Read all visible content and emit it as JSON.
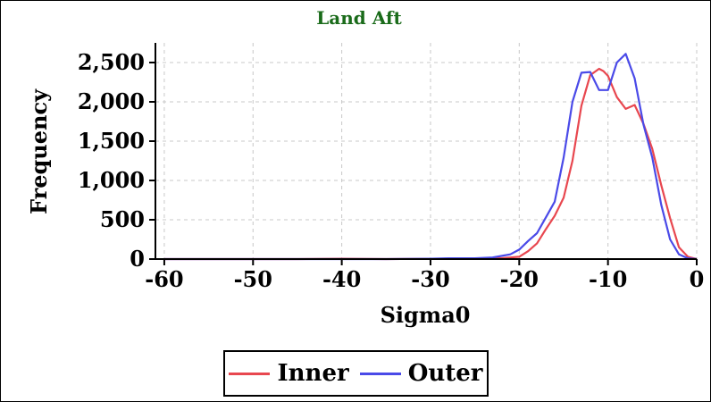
{
  "chart_data": {
    "type": "line",
    "title": "Land Aft",
    "xlabel": "Sigma0",
    "ylabel": "Frequency",
    "xlim": [
      -61,
      0
    ],
    "ylim": [
      0,
      2750
    ],
    "xticks": [
      "-60",
      "-50",
      "-40",
      "-30",
      "-20",
      "-10",
      "0"
    ],
    "yticks": [
      "0",
      "500",
      "1,000",
      "1,500",
      "2,000",
      "2,500"
    ],
    "grid": true,
    "legend_position": "bottom",
    "series": [
      {
        "name": "Inner",
        "color": "#e8474f",
        "x": [
          -60,
          -55,
          -50,
          -45,
          -40,
          -35,
          -30,
          -25,
          -23,
          -22,
          -21,
          -20,
          -19,
          -18,
          -17,
          -16,
          -15,
          -14,
          -13,
          -12,
          -11,
          -10.5,
          -10,
          -9,
          -8,
          -7,
          -6,
          -5,
          -4,
          -3,
          -2,
          -1,
          0
        ],
        "y": [
          0,
          0,
          0,
          0,
          5,
          0,
          5,
          5,
          10,
          10,
          20,
          30,
          100,
          200,
          380,
          550,
          780,
          1250,
          1950,
          2340,
          2420,
          2390,
          2330,
          2060,
          1910,
          1960,
          1720,
          1400,
          940,
          520,
          150,
          30,
          0
        ]
      },
      {
        "name": "Outer",
        "color": "#4a4ae8",
        "x": [
          -60,
          -55,
          -50,
          -45,
          -40,
          -35,
          -30,
          -28,
          -25,
          -23,
          -22,
          -21,
          -20,
          -19,
          -18,
          -17,
          -16,
          -15,
          -14,
          -13,
          -12,
          -11,
          -10,
          -9,
          -8,
          -7,
          -6,
          -5,
          -4,
          -3,
          -2,
          -1,
          0
        ],
        "y": [
          0,
          0,
          0,
          0,
          0,
          0,
          5,
          10,
          10,
          20,
          40,
          60,
          120,
          230,
          330,
          530,
          730,
          1290,
          2000,
          2370,
          2380,
          2150,
          2150,
          2500,
          2610,
          2300,
          1710,
          1290,
          690,
          250,
          60,
          10,
          0
        ]
      }
    ]
  }
}
